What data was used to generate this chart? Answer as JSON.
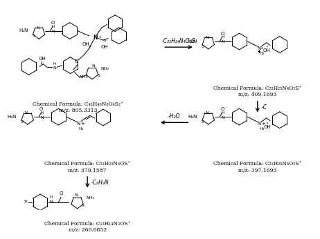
{
  "background_color": "#ffffff",
  "formula_tl": "Chemical Formula: C₄₃H₄₉N₈O₄S₂⁺",
  "mz_tl": "m/z: 805.3313",
  "formula_tr": "Chemical Formula: C₂₂H₂₅N₄O₂S⁺",
  "mz_tr": "m/z: 409.1693",
  "formula_mr": "Chemical Formula: C₂₁H₂₅N₄O₂S⁺",
  "mz_mr": "m/z: 397.1693",
  "formula_ml": "Chemical Formula: C₂₁H₂₃N₄OS⁺",
  "mz_ml": "m/z: 379.1587",
  "formula_bl": "Chemical Formula: C₁₃H₁₄N₃OS⁺",
  "mz_bl": "m/z: 260.0852",
  "arrow1_label": "-C₂₁H₂₄N₄O₂S",
  "arrow2_label": "-C",
  "arrow3_label": "-H₂O",
  "arrow4_label": "-C₈H₉N"
}
